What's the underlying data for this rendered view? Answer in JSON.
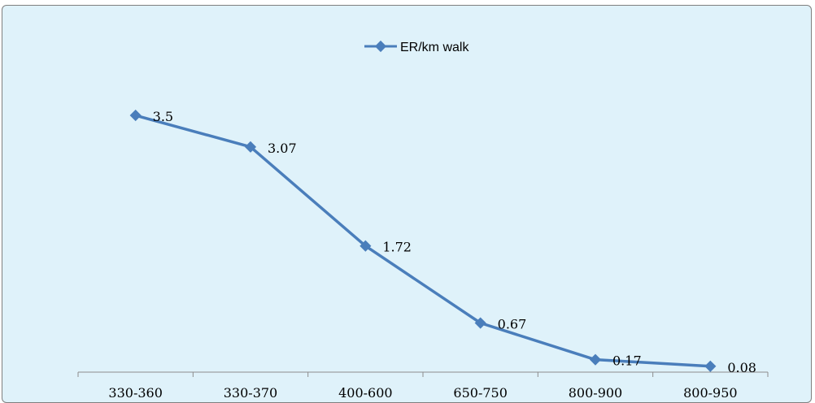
{
  "chart_data": {
    "type": "line",
    "categories": [
      "330-360",
      "330-370",
      "400-600",
      "650-750",
      "800-900",
      "800-950"
    ],
    "series": [
      {
        "name": "ER/km walk",
        "values": [
          3.5,
          3.07,
          1.72,
          0.67,
          0.17,
          0.08
        ],
        "data_labels": [
          "3.5",
          "3.07",
          "1.72",
          "0.67",
          "0.17",
          "0.08"
        ],
        "color": "#4a7ebb"
      }
    ],
    "ylim": [
      0,
      4
    ],
    "grid": false,
    "legend_position": "top-center"
  }
}
